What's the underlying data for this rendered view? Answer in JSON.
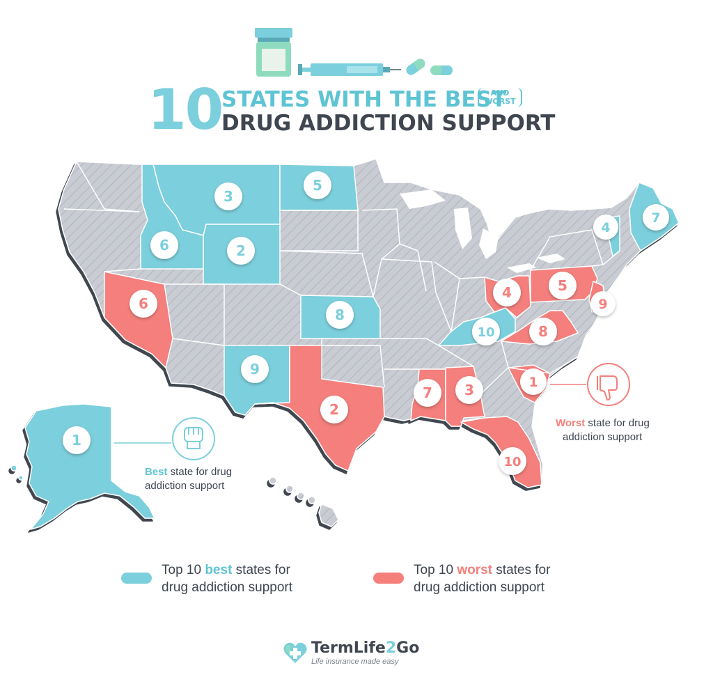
{
  "title": {
    "number": "10",
    "line1": "STATES WITH THE BEST",
    "paren_line1": "AND",
    "paren_line2": "WORST",
    "line2": "DRUG ADDICTION SUPPORT"
  },
  "colors": {
    "best": "#7ccfdc",
    "worst": "#f47f7b",
    "other": "#c9ccd3",
    "border": "#ffffff",
    "text": "#3f4650"
  },
  "map": {
    "best_states": [
      {
        "rank": "1",
        "state": "Alaska"
      },
      {
        "rank": "2",
        "state": "Wyoming"
      },
      {
        "rank": "3",
        "state": "Montana"
      },
      {
        "rank": "4",
        "state": "Vermont"
      },
      {
        "rank": "5",
        "state": "North Dakota"
      },
      {
        "rank": "6",
        "state": "Idaho"
      },
      {
        "rank": "7",
        "state": "Maine"
      },
      {
        "rank": "8",
        "state": "Kansas"
      },
      {
        "rank": "9",
        "state": "New Mexico"
      },
      {
        "rank": "10",
        "state": "Kentucky"
      }
    ],
    "worst_states": [
      {
        "rank": "1",
        "state": "South Carolina"
      },
      {
        "rank": "2",
        "state": "Texas"
      },
      {
        "rank": "3",
        "state": "Alabama"
      },
      {
        "rank": "4",
        "state": "Ohio"
      },
      {
        "rank": "5",
        "state": "Pennsylvania"
      },
      {
        "rank": "6",
        "state": "Nevada"
      },
      {
        "rank": "7",
        "state": "Mississippi"
      },
      {
        "rank": "8",
        "state": "Virginia"
      },
      {
        "rank": "9",
        "state": "New Jersey"
      },
      {
        "rank": "10",
        "state": "Florida"
      }
    ]
  },
  "callouts": {
    "best": {
      "emphasis": "Best",
      "rest1": " state for drug",
      "rest2": "addiction support",
      "icon": "fist-icon"
    },
    "worst": {
      "emphasis": "Worst",
      "rest1": " state for drug",
      "rest2": "addiction support",
      "icon": "thumbs-down-icon"
    }
  },
  "legend": {
    "best": {
      "pre": "Top 10 ",
      "emphasis": "best",
      "post": " states for",
      "line2": "drug addiction support"
    },
    "worst": {
      "pre": "Top 10 ",
      "emphasis": "worst",
      "post": " states for",
      "line2": "drug addiction support"
    }
  },
  "logo": {
    "name_a": "TermLife",
    "name_b": "2",
    "name_c": "Go",
    "tagline": "Life insurance made easy",
    "icon": "heart-cross-icon"
  }
}
